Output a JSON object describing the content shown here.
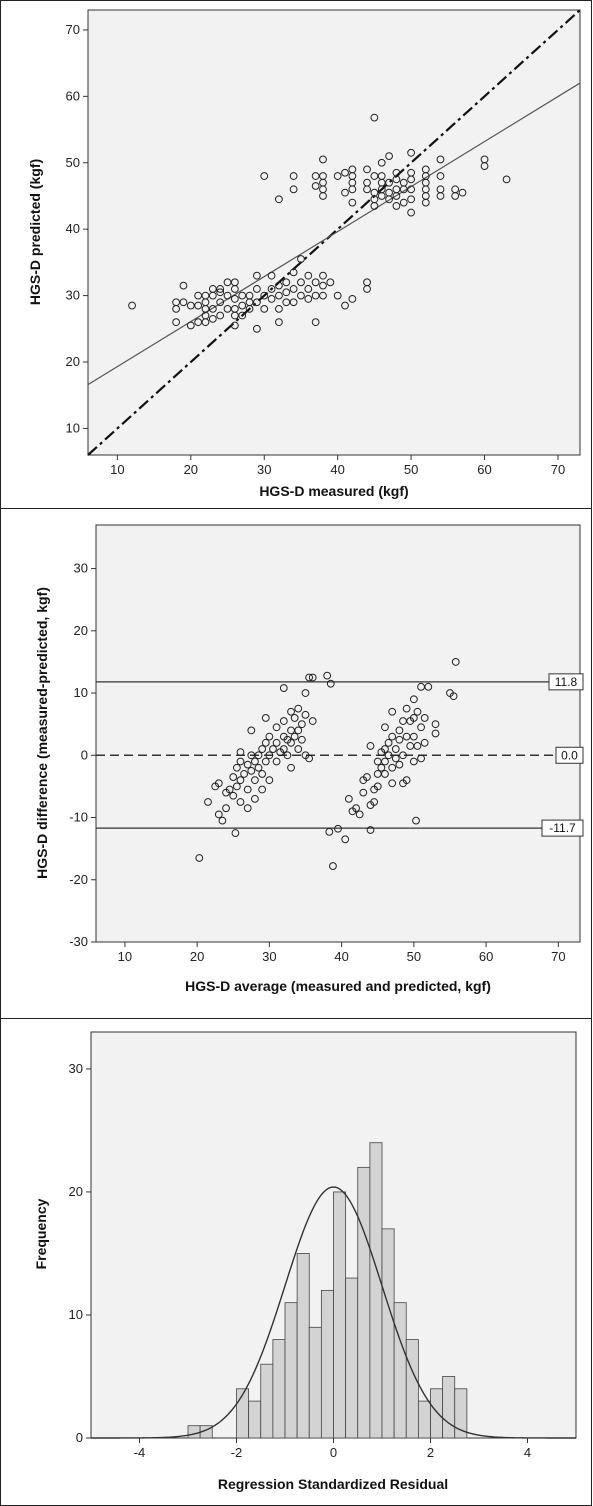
{
  "chart_data": [
    {
      "type": "scatter",
      "xlabel": "HGS-D measured (kgf)",
      "ylabel": "HGS-D predicted (kgf)",
      "xlim": [
        6,
        73
      ],
      "ylim": [
        6,
        73
      ],
      "x_ticks": [
        10,
        20,
        30,
        40,
        50,
        60,
        70
      ],
      "y_ticks": [
        10,
        20,
        30,
        40,
        50,
        60,
        70
      ],
      "grid": false,
      "lines": [
        {
          "role": "identity",
          "style": "dashed",
          "points": [
            [
              6,
              6
            ],
            [
              73,
              73
            ]
          ]
        },
        {
          "role": "regression-fit",
          "style": "solid",
          "points": [
            [
              6,
              16.6
            ],
            [
              73,
              62.0
            ]
          ]
        }
      ],
      "points": [
        [
          12,
          28.5
        ],
        [
          18,
          26
        ],
        [
          18,
          28
        ],
        [
          18,
          29
        ],
        [
          19,
          29
        ],
        [
          19,
          31.5
        ],
        [
          20,
          28.5
        ],
        [
          20,
          25.5
        ],
        [
          21,
          26
        ],
        [
          21,
          28.5
        ],
        [
          21,
          30
        ],
        [
          22,
          26
        ],
        [
          22,
          27
        ],
        [
          22,
          28
        ],
        [
          22,
          29
        ],
        [
          22,
          30
        ],
        [
          23,
          26.5
        ],
        [
          23,
          28
        ],
        [
          23,
          30
        ],
        [
          23,
          31
        ],
        [
          24,
          27
        ],
        [
          24,
          29
        ],
        [
          24,
          30.5
        ],
        [
          24,
          31
        ],
        [
          25,
          28
        ],
        [
          25,
          30
        ],
        [
          25,
          32
        ],
        [
          26,
          25.5
        ],
        [
          26,
          27
        ],
        [
          26,
          28
        ],
        [
          26,
          29.5
        ],
        [
          26,
          31
        ],
        [
          26,
          32
        ],
        [
          27,
          27
        ],
        [
          27,
          28.5
        ],
        [
          27,
          30
        ],
        [
          28,
          28
        ],
        [
          28,
          29
        ],
        [
          28,
          30
        ],
        [
          29,
          25
        ],
        [
          29,
          29
        ],
        [
          29,
          31
        ],
        [
          29,
          33
        ],
        [
          30,
          28
        ],
        [
          30,
          30
        ],
        [
          30,
          48
        ],
        [
          31,
          29.5
        ],
        [
          31,
          31
        ],
        [
          31,
          33
        ],
        [
          32,
          26
        ],
        [
          32,
          28
        ],
        [
          32,
          30
        ],
        [
          32,
          31.5
        ],
        [
          32,
          44.5
        ],
        [
          33,
          29
        ],
        [
          33,
          30.5
        ],
        [
          33,
          32
        ],
        [
          34,
          29
        ],
        [
          34,
          31
        ],
        [
          34,
          33.5
        ],
        [
          34,
          46
        ],
        [
          34,
          48
        ],
        [
          35,
          30
        ],
        [
          35,
          32
        ],
        [
          35,
          35.5
        ],
        [
          36,
          29.5
        ],
        [
          36,
          31
        ],
        [
          36,
          33
        ],
        [
          37,
          26
        ],
        [
          37,
          30
        ],
        [
          37,
          32
        ],
        [
          37,
          46.5
        ],
        [
          37,
          48
        ],
        [
          38,
          30
        ],
        [
          38,
          31.5
        ],
        [
          38,
          33
        ],
        [
          38,
          45
        ],
        [
          38,
          46
        ],
        [
          38,
          47
        ],
        [
          38,
          48
        ],
        [
          38,
          50.5
        ],
        [
          39,
          32
        ],
        [
          40,
          30
        ],
        [
          40,
          48
        ],
        [
          41,
          28.5
        ],
        [
          41,
          45.5
        ],
        [
          41,
          48.5
        ],
        [
          42,
          29.5
        ],
        [
          42,
          44
        ],
        [
          42,
          46
        ],
        [
          42,
          47
        ],
        [
          42,
          48
        ],
        [
          42,
          49
        ],
        [
          44,
          31
        ],
        [
          44,
          32
        ],
        [
          44,
          46
        ],
        [
          44,
          47
        ],
        [
          44,
          49
        ],
        [
          45,
          43.5
        ],
        [
          45,
          44.5
        ],
        [
          45,
          45.5
        ],
        [
          45,
          48
        ],
        [
          45,
          56.8
        ],
        [
          46,
          45
        ],
        [
          46,
          46
        ],
        [
          46,
          47
        ],
        [
          46,
          48
        ],
        [
          46,
          50
        ],
        [
          47,
          44.5
        ],
        [
          47,
          45.5
        ],
        [
          47,
          47
        ],
        [
          47,
          51
        ],
        [
          48,
          43.5
        ],
        [
          48,
          45
        ],
        [
          48,
          46
        ],
        [
          48,
          47.5
        ],
        [
          48,
          48.5
        ],
        [
          49,
          44
        ],
        [
          49,
          46
        ],
        [
          49,
          47
        ],
        [
          50,
          42.5
        ],
        [
          50,
          44.5
        ],
        [
          50,
          46
        ],
        [
          50,
          47.5
        ],
        [
          50,
          48.5
        ],
        [
          50,
          51.5
        ],
        [
          52,
          44
        ],
        [
          52,
          45
        ],
        [
          52,
          46
        ],
        [
          52,
          47
        ],
        [
          52,
          48
        ],
        [
          52,
          49
        ],
        [
          54,
          45
        ],
        [
          54,
          46
        ],
        [
          54,
          48
        ],
        [
          54,
          50.5
        ],
        [
          56,
          45
        ],
        [
          56,
          46
        ],
        [
          57,
          45.5
        ],
        [
          60,
          49.5
        ],
        [
          60,
          50.5
        ],
        [
          63,
          47.5
        ]
      ]
    },
    {
      "type": "scatter",
      "xlabel": "HGS-D average (measured and predicted, kgf)",
      "ylabel": "HGS-D difference (measured-predicted, kgf)",
      "xlim": [
        6,
        73
      ],
      "ylim": [
        -30,
        37
      ],
      "x_ticks": [
        10,
        20,
        30,
        40,
        50,
        60,
        70
      ],
      "y_ticks": [
        -30,
        -20,
        -10,
        0,
        10,
        20,
        30
      ],
      "grid": false,
      "reference_lines": [
        {
          "value": 11.8,
          "label": "11.8",
          "style": "solid"
        },
        {
          "value": 0.0,
          "label": "0.0",
          "style": "dashed"
        },
        {
          "value": -11.7,
          "label": "-11.7",
          "style": "solid"
        }
      ],
      "points": [
        [
          20.3,
          -16.5
        ],
        [
          21.5,
          -7.5
        ],
        [
          22.5,
          -5
        ],
        [
          23,
          -4.5
        ],
        [
          23,
          -9.5
        ],
        [
          23.5,
          -10.5
        ],
        [
          24,
          -6
        ],
        [
          24,
          -8.5
        ],
        [
          24.5,
          -5.5
        ],
        [
          25,
          -3.5
        ],
        [
          25,
          -6.5
        ],
        [
          25.3,
          -12.5
        ],
        [
          25.5,
          -2
        ],
        [
          25.5,
          -5
        ],
        [
          26,
          -1
        ],
        [
          26,
          -4
        ],
        [
          26,
          -7.5
        ],
        [
          26,
          0.5
        ],
        [
          26.5,
          -3
        ],
        [
          27,
          -1.5
        ],
        [
          27,
          -5.5
        ],
        [
          27,
          -8.5
        ],
        [
          27.5,
          0
        ],
        [
          27.5,
          -2.5
        ],
        [
          27.5,
          4
        ],
        [
          28,
          -1
        ],
        [
          28,
          -4
        ],
        [
          28,
          -7
        ],
        [
          28.5,
          0
        ],
        [
          28.5,
          -2
        ],
        [
          29,
          1
        ],
        [
          29,
          -3
        ],
        [
          29,
          -5.5
        ],
        [
          29.5,
          2
        ],
        [
          29.5,
          -1
        ],
        [
          29.5,
          6
        ],
        [
          30,
          0
        ],
        [
          30,
          3
        ],
        [
          30,
          -4
        ],
        [
          30.5,
          1
        ],
        [
          31,
          2
        ],
        [
          31,
          -1
        ],
        [
          31,
          4.5
        ],
        [
          31.5,
          0.5
        ],
        [
          32,
          1
        ],
        [
          32,
          3
        ],
        [
          32,
          5.5
        ],
        [
          32,
          10.8
        ],
        [
          32.5,
          0
        ],
        [
          32.5,
          2.5
        ],
        [
          33,
          2
        ],
        [
          33,
          4
        ],
        [
          33,
          7
        ],
        [
          33,
          -2
        ],
        [
          33.5,
          3
        ],
        [
          33.5,
          6
        ],
        [
          34,
          1
        ],
        [
          34,
          4
        ],
        [
          34,
          7.5
        ],
        [
          34.5,
          5
        ],
        [
          34.5,
          2.5
        ],
        [
          35,
          6.5
        ],
        [
          35,
          0
        ],
        [
          35,
          10
        ],
        [
          35.5,
          12.5
        ],
        [
          35.5,
          -0.5
        ],
        [
          36,
          5.5
        ],
        [
          36,
          12.5
        ],
        [
          38,
          12.8
        ],
        [
          38.5,
          11.5
        ],
        [
          38.3,
          -12.3
        ],
        [
          38.8,
          -17.8
        ],
        [
          39.5,
          -11.8
        ],
        [
          40.5,
          -13.5
        ],
        [
          41,
          -7
        ],
        [
          41.5,
          -9
        ],
        [
          42,
          -8.5
        ],
        [
          42.5,
          -9.5
        ],
        [
          43,
          -4
        ],
        [
          43,
          -6
        ],
        [
          43.5,
          -3.5
        ],
        [
          44,
          -12
        ],
        [
          44,
          -8
        ],
        [
          44,
          1.5
        ],
        [
          44.5,
          -5.5
        ],
        [
          44.5,
          -7.5
        ],
        [
          45,
          -1
        ],
        [
          45,
          -3
        ],
        [
          45,
          -5
        ],
        [
          45.5,
          0.5
        ],
        [
          45.5,
          -2
        ],
        [
          46,
          -1
        ],
        [
          46,
          1
        ],
        [
          46,
          -3
        ],
        [
          46,
          4.5
        ],
        [
          46.5,
          2
        ],
        [
          46.5,
          0
        ],
        [
          47,
          -2
        ],
        [
          47,
          3
        ],
        [
          47,
          -4.5
        ],
        [
          47,
          7
        ],
        [
          47.5,
          1
        ],
        [
          47.5,
          -0.5
        ],
        [
          48,
          -1.5
        ],
        [
          48,
          2.5
        ],
        [
          48,
          4
        ],
        [
          48.5,
          0
        ],
        [
          48.5,
          5.5
        ],
        [
          48.5,
          -4.5
        ],
        [
          49,
          3
        ],
        [
          49,
          7.5
        ],
        [
          49,
          -4
        ],
        [
          49.5,
          1.5
        ],
        [
          49.5,
          5.5
        ],
        [
          50,
          -1
        ],
        [
          50,
          3
        ],
        [
          50,
          6
        ],
        [
          50,
          9
        ],
        [
          50.3,
          -10.5
        ],
        [
          50.5,
          1.5
        ],
        [
          50.5,
          7
        ],
        [
          51,
          -0.5
        ],
        [
          51,
          4.5
        ],
        [
          51,
          11
        ],
        [
          51.5,
          2
        ],
        [
          51.5,
          6
        ],
        [
          52,
          11
        ],
        [
          53,
          3.5
        ],
        [
          53,
          5
        ],
        [
          55,
          10
        ],
        [
          55.5,
          9.5
        ],
        [
          55.8,
          15
        ]
      ]
    },
    {
      "type": "bar",
      "subtype": "histogram",
      "xlabel": "Regression Standardized Residual",
      "ylabel": "Frequency",
      "xlim": [
        -5,
        5
      ],
      "ylim": [
        0,
        33
      ],
      "x_ticks": [
        -4,
        -2,
        0,
        2,
        4
      ],
      "y_ticks": [
        0,
        10,
        20,
        30
      ],
      "grid": false,
      "bin_width": 0.25,
      "bin_start": -3.0,
      "values": [
        1,
        1,
        0,
        0,
        4,
        3,
        6,
        8,
        11,
        15,
        9,
        12,
        20,
        13,
        22,
        24,
        17,
        11,
        8,
        3,
        4,
        5,
        4
      ],
      "normal_curve": {
        "mean": 0,
        "sd": 1,
        "peak": 20.4
      }
    }
  ]
}
